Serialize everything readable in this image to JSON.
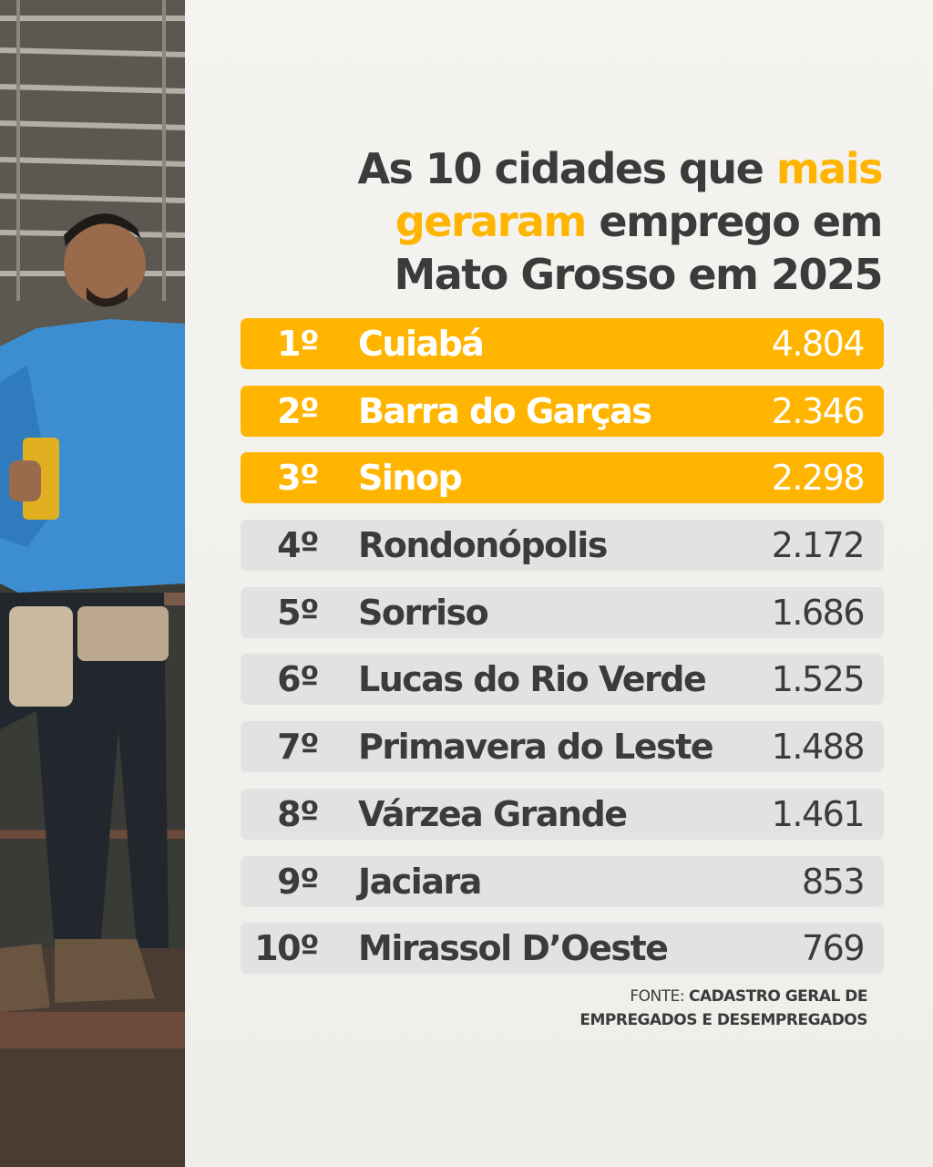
{
  "title": {
    "part1": "As 10 cidades que ",
    "highlight": "mais gera­ram",
    "highlight_a": "mais",
    "highlight_b": "geraram",
    "part2": " emprego em Mato Grosso em 2025"
  },
  "ranking": [
    {
      "rank": "1º",
      "city": "Cuiabá",
      "value": "4.804",
      "highlighted": true
    },
    {
      "rank": "2º",
      "city": "Barra do Garças",
      "value": "2.346",
      "highlighted": true
    },
    {
      "rank": "3º",
      "city": "Sinop",
      "value": "2.298",
      "highlighted": true
    },
    {
      "rank": "4º",
      "city": "Rondonópolis",
      "value": "2.172",
      "highlighted": false
    },
    {
      "rank": "5º",
      "city": "Sorriso",
      "value": "1.686",
      "highlighted": false
    },
    {
      "rank": "6º",
      "city": "Lucas do Rio Verde",
      "value": "1.525",
      "highlighted": false
    },
    {
      "rank": "7º",
      "city": "Primavera do Leste",
      "value": "1.488",
      "highlighted": false
    },
    {
      "rank": "8º",
      "city": "Várzea Grande",
      "value": "1.461",
      "highlighted": false
    },
    {
      "rank": "9º",
      "city": "Jaciara",
      "value": "853",
      "highlighted": false
    },
    {
      "rank": "10º",
      "city": "Mirassol D’Oeste",
      "value": "769",
      "highlighted": false
    }
  ],
  "source": {
    "label": "FONTE: ",
    "line1": "CADASTRO GERAL DE",
    "line2": "EMPREGADOS E DESEMPREGADOS"
  },
  "colors": {
    "accent": "#ffb400",
    "text": "#3b3b3b",
    "row_bg": "#e2e2e2",
    "background": "#f1f0ec"
  }
}
